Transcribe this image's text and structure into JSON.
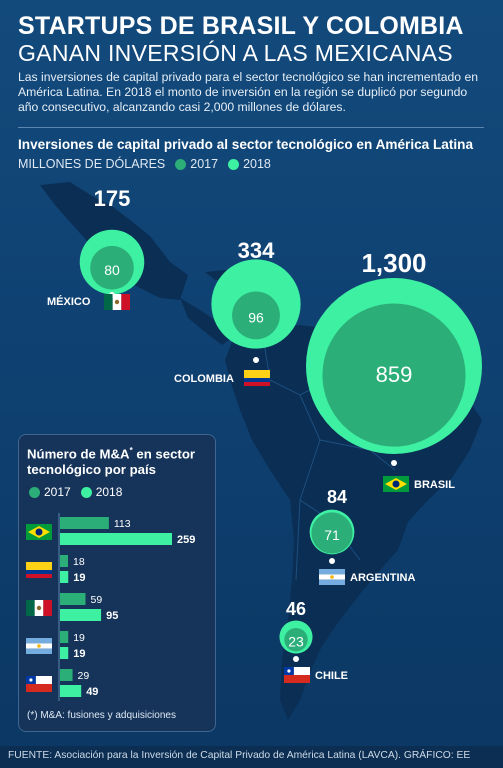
{
  "header": {
    "title_line1": "STARTUPS DE BRASIL Y COLOMBIA",
    "title_line2": "GANAN INVERSIÓN A LAS MEXICANAS",
    "intro": "Las inversiones de capital privado para el sector tecnológico se han incrementado en América Latina. En 2018 el monto de inversión en la región se duplicó por segundo año consecutivo, alcanzando casi 2,000 millones de dólares."
  },
  "colors": {
    "y2017": "#2bae78",
    "y2018": "#3ef0a2",
    "background": "#0f4273"
  },
  "chart_data": [
    {
      "type": "bubble",
      "title": "Inversiones de capital privado al sector tecnológico en América Latina",
      "unit": "MILLONES DE DÓLARES",
      "legend": [
        "2017",
        "2018"
      ],
      "categories": [
        "MÉXICO",
        "COLOMBIA",
        "BRASIL",
        "ARGENTINA",
        "CHILE"
      ],
      "series": [
        {
          "name": "2017",
          "values": [
            80,
            96,
            859,
            71,
            23
          ]
        },
        {
          "name": "2018",
          "values": [
            175,
            334,
            1300,
            84,
            46
          ]
        }
      ],
      "labels_2018": [
        "175",
        "334",
        "1,300",
        "84",
        "46"
      ],
      "labels_2017": [
        "80",
        "96",
        "859",
        "71",
        "23"
      ]
    },
    {
      "type": "bar",
      "title": "Número de M&A* en sector tecnológico por país",
      "legend": [
        "2017",
        "2018"
      ],
      "categories": [
        "Brasil",
        "Colombia",
        "México",
        "Argentina",
        "Chile"
      ],
      "series": [
        {
          "name": "2017",
          "values": [
            113,
            18,
            59,
            19,
            29
          ]
        },
        {
          "name": "2018",
          "values": [
            259,
            19,
            95,
            19,
            49
          ]
        }
      ],
      "xlim": [
        0,
        259
      ]
    }
  ],
  "inset": {
    "title_part1": "Número de M&A",
    "title_sup": "*",
    "title_part2": " en sector tecnológico por país",
    "footnote": "(*) M&A: fusiones y adquisiciones"
  },
  "source": "FUENTE: Asociación para la Inversión de Capital Privado de América Latina (LAVCA). GRÁFICO: EE"
}
